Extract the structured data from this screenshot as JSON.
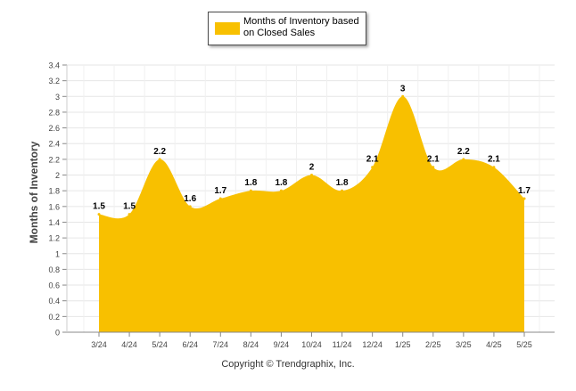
{
  "chart_data": {
    "type": "area",
    "title": "",
    "xlabel": "",
    "ylabel": "Months of Inventory",
    "categories": [
      "3/24",
      "4/24",
      "5/24",
      "6/24",
      "7/24",
      "8/24",
      "9/24",
      "10/24",
      "11/24",
      "12/24",
      "1/25",
      "2/25",
      "3/25",
      "4/25",
      "5/25"
    ],
    "series": [
      {
        "name": "Months of Inventory based on Closed Sales",
        "values": [
          1.5,
          1.5,
          2.2,
          1.6,
          1.7,
          1.8,
          1.8,
          2,
          1.8,
          2.1,
          3,
          2.1,
          2.2,
          2.1,
          1.7
        ]
      }
    ],
    "ylim": [
      0,
      3.4
    ],
    "yticks": [
      "0",
      "0.2",
      "0.4",
      "0.6",
      "0.8",
      "1",
      "1.2",
      "1.4",
      "1.6",
      "1.8",
      "2",
      "2.2",
      "2.4",
      "2.6",
      "2.8",
      "3",
      "3.2",
      "3.4"
    ],
    "data_labels": [
      "1.5",
      "1.5",
      "2.2",
      "1.6",
      "1.7",
      "1.8",
      "1.8",
      "2",
      "1.8",
      "2.1",
      "3",
      "2.1",
      "2.2",
      "2.1",
      "1.7"
    ],
    "grid": true,
    "legend_position": "top-center",
    "fill_color": "#F8C000",
    "grid_color": "#e6e6e6"
  },
  "legend": {
    "label": "Months of Inventory based on Closed Sales"
  },
  "copyright": "Copyright © Trendgraphix, Inc."
}
